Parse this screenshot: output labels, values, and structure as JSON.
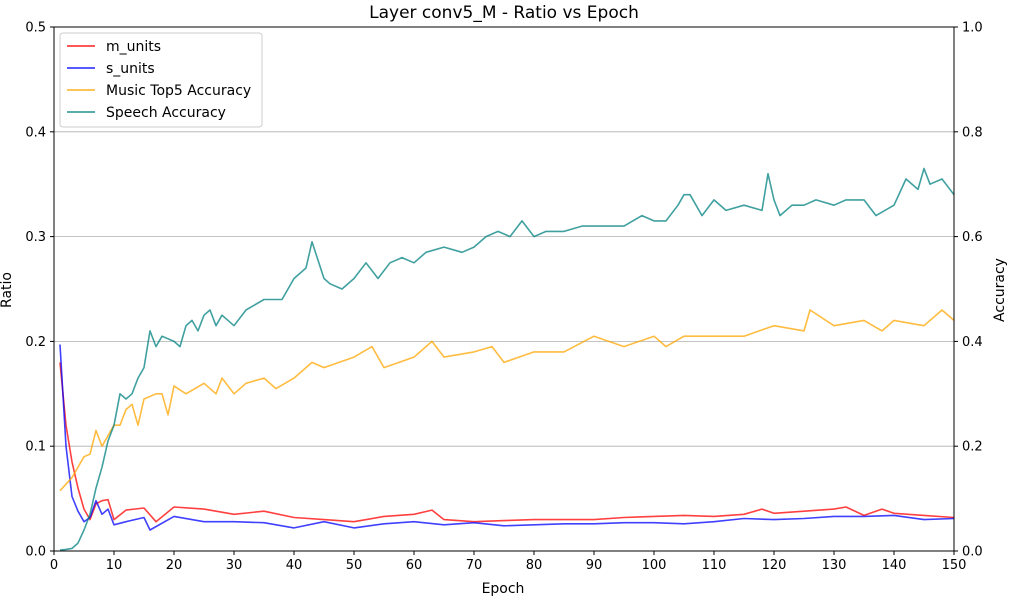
{
  "chart_data": {
    "type": "line",
    "title": "Layer conv5_M - Ratio vs Epoch",
    "xlabel": "Epoch",
    "ylabel_left": "Ratio",
    "ylabel_right": "Accuracy",
    "xlim": [
      0,
      150
    ],
    "ylim_left": [
      0,
      0.5
    ],
    "ylim_right": [
      0,
      1.0
    ],
    "x_ticks": [
      "0",
      "10",
      "20",
      "30",
      "40",
      "50",
      "60",
      "70",
      "80",
      "90",
      "100",
      "110",
      "120",
      "130",
      "140",
      "150"
    ],
    "y_ticks_left": [
      "0.0",
      "0.1",
      "0.2",
      "0.3",
      "0.4",
      "0.5"
    ],
    "y_ticks_right": [
      "0.0",
      "0.2",
      "0.4",
      "0.6",
      "0.8",
      "1.0"
    ],
    "grid": "horizontal",
    "legend_position": "top-left",
    "colors": {
      "m_units": "#ff0000",
      "s_units": "#0000ff",
      "music": "#ffa500",
      "speech": "#008080"
    },
    "series": [
      {
        "name": "m_units",
        "axis": "left",
        "x": [
          1,
          2,
          3,
          4,
          5,
          6,
          7,
          8,
          9,
          10,
          12,
          15,
          17,
          20,
          25,
          30,
          35,
          40,
          45,
          50,
          55,
          60,
          63,
          65,
          70,
          75,
          80,
          85,
          90,
          95,
          100,
          105,
          110,
          115,
          118,
          120,
          125,
          130,
          132,
          135,
          138,
          140,
          145,
          150
        ],
        "values": [
          0.18,
          0.12,
          0.085,
          0.06,
          0.04,
          0.03,
          0.045,
          0.048,
          0.049,
          0.03,
          0.039,
          0.041,
          0.028,
          0.042,
          0.04,
          0.035,
          0.038,
          0.032,
          0.03,
          0.028,
          0.033,
          0.035,
          0.039,
          0.03,
          0.028,
          0.029,
          0.03,
          0.03,
          0.03,
          0.032,
          0.033,
          0.034,
          0.033,
          0.035,
          0.04,
          0.036,
          0.038,
          0.04,
          0.042,
          0.034,
          0.04,
          0.036,
          0.034,
          0.032
        ]
      },
      {
        "name": "s_units",
        "axis": "left",
        "x": [
          1,
          2,
          3,
          4,
          5,
          6,
          7,
          8,
          9,
          10,
          12,
          15,
          16,
          20,
          25,
          30,
          35,
          40,
          45,
          50,
          55,
          60,
          65,
          70,
          75,
          80,
          85,
          90,
          95,
          100,
          105,
          110,
          115,
          120,
          125,
          130,
          135,
          140,
          145,
          150
        ],
        "values": [
          0.197,
          0.1,
          0.052,
          0.038,
          0.028,
          0.032,
          0.048,
          0.035,
          0.04,
          0.025,
          0.028,
          0.032,
          0.02,
          0.033,
          0.028,
          0.028,
          0.027,
          0.022,
          0.028,
          0.022,
          0.026,
          0.028,
          0.025,
          0.027,
          0.024,
          0.025,
          0.026,
          0.026,
          0.027,
          0.027,
          0.026,
          0.028,
          0.031,
          0.03,
          0.031,
          0.033,
          0.033,
          0.034,
          0.03,
          0.031
        ]
      },
      {
        "name": "Music Top5 Accuracy",
        "axis": "right",
        "x": [
          1,
          3,
          5,
          6,
          7,
          8,
          9,
          10,
          11,
          12,
          13,
          14,
          15,
          17,
          18,
          19,
          20,
          22,
          25,
          27,
          28,
          30,
          32,
          35,
          37,
          40,
          43,
          45,
          50,
          53,
          55,
          60,
          63,
          65,
          70,
          73,
          75,
          80,
          85,
          90,
          95,
          100,
          102,
          105,
          110,
          115,
          120,
          125,
          126,
          130,
          135,
          138,
          140,
          145,
          148,
          150
        ],
        "values": [
          0.115,
          0.14,
          0.18,
          0.185,
          0.23,
          0.2,
          0.22,
          0.24,
          0.24,
          0.27,
          0.28,
          0.24,
          0.29,
          0.3,
          0.3,
          0.26,
          0.315,
          0.3,
          0.32,
          0.3,
          0.33,
          0.3,
          0.32,
          0.33,
          0.31,
          0.33,
          0.36,
          0.35,
          0.37,
          0.39,
          0.35,
          0.37,
          0.4,
          0.37,
          0.38,
          0.39,
          0.36,
          0.38,
          0.38,
          0.41,
          0.39,
          0.41,
          0.39,
          0.41,
          0.41,
          0.41,
          0.43,
          0.42,
          0.46,
          0.43,
          0.44,
          0.42,
          0.44,
          0.43,
          0.46,
          0.44
        ]
      },
      {
        "name": "Speech Accuracy",
        "axis": "right",
        "x": [
          1,
          2,
          3,
          4,
          5,
          6,
          7,
          8,
          9,
          10,
          11,
          12,
          13,
          14,
          15,
          16,
          17,
          18,
          20,
          21,
          22,
          23,
          24,
          25,
          26,
          27,
          28,
          30,
          32,
          35,
          38,
          40,
          42,
          43,
          45,
          46,
          48,
          50,
          52,
          54,
          56,
          58,
          60,
          62,
          65,
          68,
          70,
          72,
          74,
          76,
          78,
          80,
          82,
          85,
          88,
          90,
          93,
          95,
          98,
          100,
          102,
          104,
          105,
          106,
          108,
          110,
          112,
          115,
          118,
          119,
          120,
          121,
          123,
          125,
          127,
          130,
          132,
          135,
          137,
          140,
          142,
          144,
          145,
          146,
          148,
          150
        ],
        "values": [
          0.002,
          0.003,
          0.005,
          0.015,
          0.04,
          0.07,
          0.12,
          0.16,
          0.21,
          0.24,
          0.3,
          0.29,
          0.3,
          0.33,
          0.35,
          0.42,
          0.39,
          0.41,
          0.4,
          0.39,
          0.43,
          0.44,
          0.42,
          0.45,
          0.46,
          0.43,
          0.45,
          0.43,
          0.46,
          0.48,
          0.48,
          0.52,
          0.54,
          0.59,
          0.52,
          0.51,
          0.5,
          0.52,
          0.55,
          0.52,
          0.55,
          0.56,
          0.55,
          0.57,
          0.58,
          0.57,
          0.58,
          0.6,
          0.61,
          0.6,
          0.63,
          0.6,
          0.61,
          0.61,
          0.62,
          0.62,
          0.62,
          0.62,
          0.64,
          0.63,
          0.63,
          0.66,
          0.68,
          0.68,
          0.64,
          0.67,
          0.65,
          0.66,
          0.65,
          0.72,
          0.67,
          0.64,
          0.66,
          0.66,
          0.67,
          0.66,
          0.67,
          0.67,
          0.64,
          0.66,
          0.71,
          0.69,
          0.73,
          0.7,
          0.71,
          0.68
        ]
      }
    ]
  }
}
